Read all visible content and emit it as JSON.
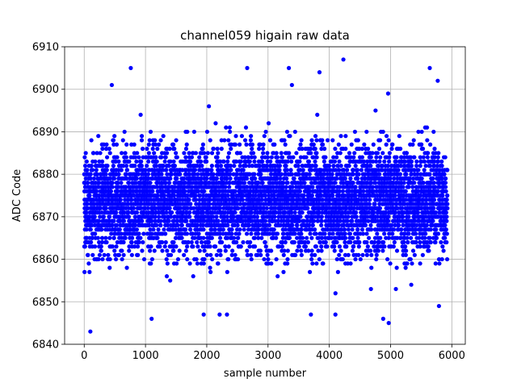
{
  "chart_data": {
    "type": "scatter",
    "title": "channel059 higain raw data",
    "xlabel": "sample number",
    "ylabel": "ADC Code",
    "xlim": [
      -320,
      6220
    ],
    "ylim": [
      6840,
      6910
    ],
    "xticks": [
      0,
      1000,
      2000,
      3000,
      4000,
      5000,
      6000
    ],
    "yticks": [
      6840,
      6850,
      6860,
      6870,
      6880,
      6890,
      6900,
      6910
    ],
    "grid": true,
    "marker_color": "#0000ff",
    "n_samples": 5930,
    "sample_range": [
      0,
      5929
    ],
    "typical_range": [
      6857,
      6890
    ],
    "central_value": 6874,
    "highlighted_points": [
      {
        "x": 100,
        "y": 6843
      },
      {
        "x": 760,
        "y": 6905
      },
      {
        "x": 450,
        "y": 6901
      },
      {
        "x": 1100,
        "y": 6846
      },
      {
        "x": 2660,
        "y": 6905
      },
      {
        "x": 3340,
        "y": 6905
      },
      {
        "x": 3390,
        "y": 6901
      },
      {
        "x": 3840,
        "y": 6904
      },
      {
        "x": 4230,
        "y": 6907
      },
      {
        "x": 4880,
        "y": 6846
      },
      {
        "x": 4970,
        "y": 6845
      },
      {
        "x": 4960,
        "y": 6899
      },
      {
        "x": 5640,
        "y": 6905
      },
      {
        "x": 5770,
        "y": 6902
      },
      {
        "x": 1950,
        "y": 6847
      },
      {
        "x": 2210,
        "y": 6847
      },
      {
        "x": 2330,
        "y": 6847
      },
      {
        "x": 3700,
        "y": 6847
      },
      {
        "x": 4100,
        "y": 6847
      },
      {
        "x": 5790,
        "y": 6849
      }
    ]
  }
}
